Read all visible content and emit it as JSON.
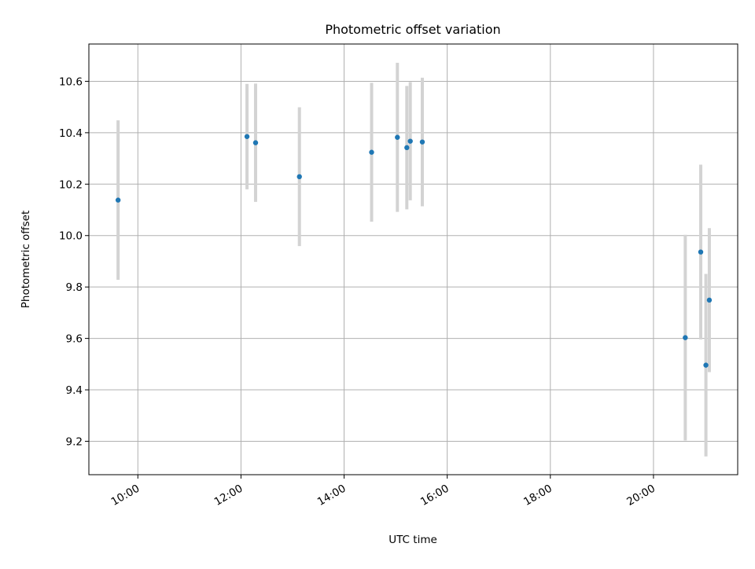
{
  "chart_data": {
    "type": "scatter",
    "title": "Photometric offset variation",
    "xlabel": "UTC time",
    "ylabel": "Photometric offset",
    "xlim": [
      "09:03",
      "21:38"
    ],
    "ylim": [
      9.07,
      10.745
    ],
    "grid": true,
    "x_ticks": [
      "10:00",
      "12:00",
      "14:00",
      "16:00",
      "18:00",
      "20:00"
    ],
    "y_ticks": [
      "9.2",
      "9.4",
      "9.6",
      "9.8",
      "10.0",
      "10.2",
      "10.4",
      "10.6"
    ],
    "point_color": "#1f77b4",
    "errorbar_color": "#d3d3d3",
    "points": [
      {
        "x": "09:37",
        "y": 10.138,
        "err": 0.31
      },
      {
        "x": "12:07",
        "y": 10.385,
        "err": 0.205
      },
      {
        "x": "12:17",
        "y": 10.361,
        "err": 0.23
      },
      {
        "x": "13:08",
        "y": 10.229,
        "err": 0.27
      },
      {
        "x": "14:32",
        "y": 10.324,
        "err": 0.27
      },
      {
        "x": "15:02",
        "y": 10.382,
        "err": 0.29
      },
      {
        "x": "15:13",
        "y": 10.342,
        "err": 0.24
      },
      {
        "x": "15:17",
        "y": 10.367,
        "err": 0.23
      },
      {
        "x": "15:31",
        "y": 10.364,
        "err": 0.25
      },
      {
        "x": "20:37",
        "y": 9.603,
        "err": 0.4
      },
      {
        "x": "20:55",
        "y": 9.936,
        "err": 0.34
      },
      {
        "x": "21:01",
        "y": 9.496,
        "err": 0.355
      },
      {
        "x": "21:05",
        "y": 9.749,
        "err": 0.28
      }
    ]
  }
}
